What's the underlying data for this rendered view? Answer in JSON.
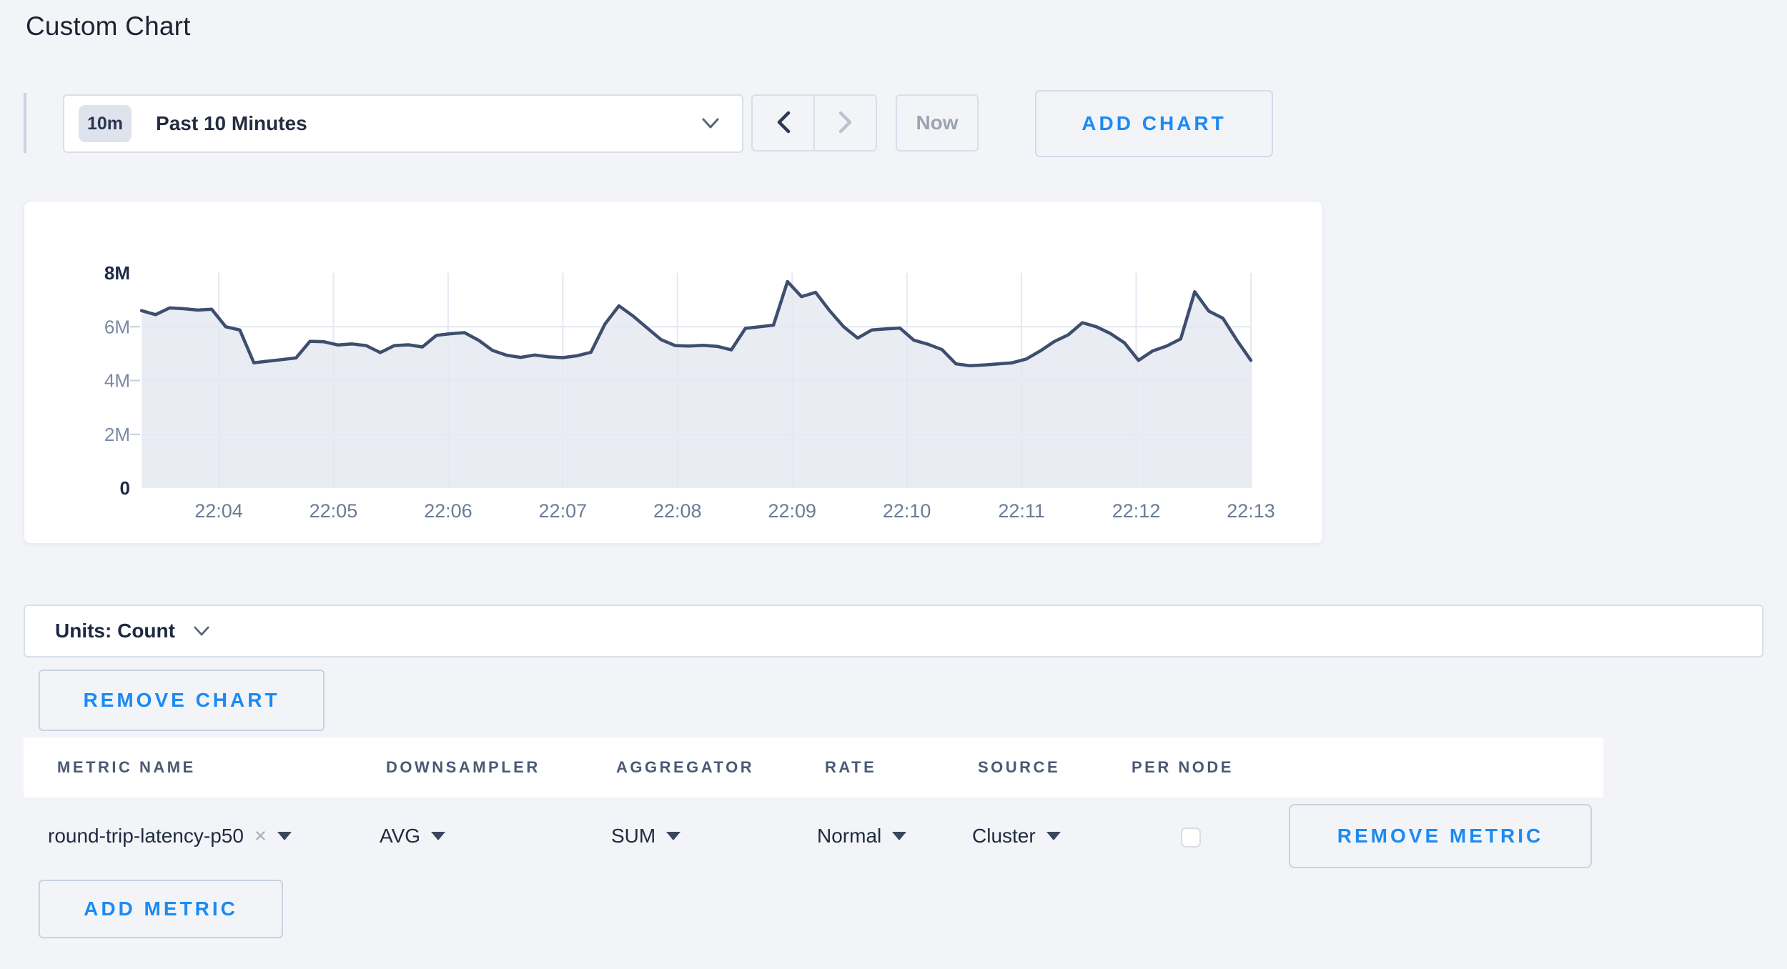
{
  "page_title": "Custom Chart",
  "toolbar": {
    "range_badge": "10m",
    "range_label": "Past 10 Minutes",
    "now_label": "Now",
    "add_chart_label": "ADD CHART"
  },
  "chart_data": {
    "type": "area",
    "title": "",
    "xlabel": "",
    "ylabel": "Count",
    "legend": "none",
    "grid": true,
    "ylim_millions": [
      0,
      8
    ],
    "x_ticks": [
      "22:04",
      "22:05",
      "22:06",
      "22:07",
      "22:08",
      "22:09",
      "22:10",
      "22:11",
      "22:12",
      "22:13"
    ],
    "y_ticks": [
      {
        "label": "0",
        "value_m": 0,
        "emphasis": true,
        "grid": false
      },
      {
        "label": "2M",
        "value_m": 2,
        "emphasis": false,
        "grid": true
      },
      {
        "label": "4M",
        "value_m": 4,
        "emphasis": false,
        "grid": true
      },
      {
        "label": "6M",
        "value_m": 6,
        "emphasis": false,
        "grid": true
      },
      {
        "label": "8M",
        "value_m": 8,
        "emphasis": true,
        "grid": false
      }
    ],
    "series": [
      {
        "name": "round-trip-latency-p50",
        "unit": "Count",
        "values_millions": [
          6.6,
          6.45,
          6.7,
          6.67,
          6.62,
          6.65,
          6.0,
          5.88,
          4.66,
          4.72,
          4.78,
          4.84,
          5.46,
          5.44,
          5.32,
          5.36,
          5.3,
          5.04,
          5.3,
          5.33,
          5.25,
          5.68,
          5.74,
          5.78,
          5.5,
          5.12,
          4.94,
          4.86,
          4.95,
          4.88,
          4.85,
          4.92,
          5.05,
          6.1,
          6.78,
          6.4,
          5.96,
          5.52,
          5.3,
          5.28,
          5.31,
          5.27,
          5.14,
          5.94,
          6.0,
          6.06,
          7.68,
          7.12,
          7.28,
          6.6,
          6.0,
          5.58,
          5.88,
          5.92,
          5.95,
          5.5,
          5.35,
          5.15,
          4.62,
          4.55,
          4.58,
          4.62,
          4.66,
          4.8,
          5.1,
          5.45,
          5.7,
          6.15,
          6.0,
          5.75,
          5.4,
          4.75,
          5.1,
          5.28,
          5.55,
          7.3,
          6.58,
          6.32,
          5.5,
          4.75
        ]
      }
    ]
  },
  "units_bar": {
    "label": "Units: Count"
  },
  "remove_chart_label": "REMOVE CHART",
  "metrics_table": {
    "columns": [
      "METRIC NAME",
      "DOWNSAMPLER",
      "AGGREGATOR",
      "RATE",
      "SOURCE",
      "PER NODE"
    ],
    "rows": [
      {
        "metric_name": "round-trip-latency-p50",
        "clear_icon": "×",
        "downsampler": "AVG",
        "aggregator": "SUM",
        "rate": "Normal",
        "source": "Cluster",
        "per_node_checked": false,
        "remove_label": "REMOVE METRIC"
      }
    ]
  },
  "add_metric_label": "ADD METRIC",
  "colors": {
    "accent_blue": "#1b8af2",
    "line": "#3e4e6e",
    "area_fill": "#e9ecf2",
    "grid": "#e4e8f1",
    "axis_emphasis": "#1d2b47",
    "axis_minor": "#7b89a2",
    "time_label": "#6b7b95",
    "page_bg": "#f3f4f8"
  }
}
